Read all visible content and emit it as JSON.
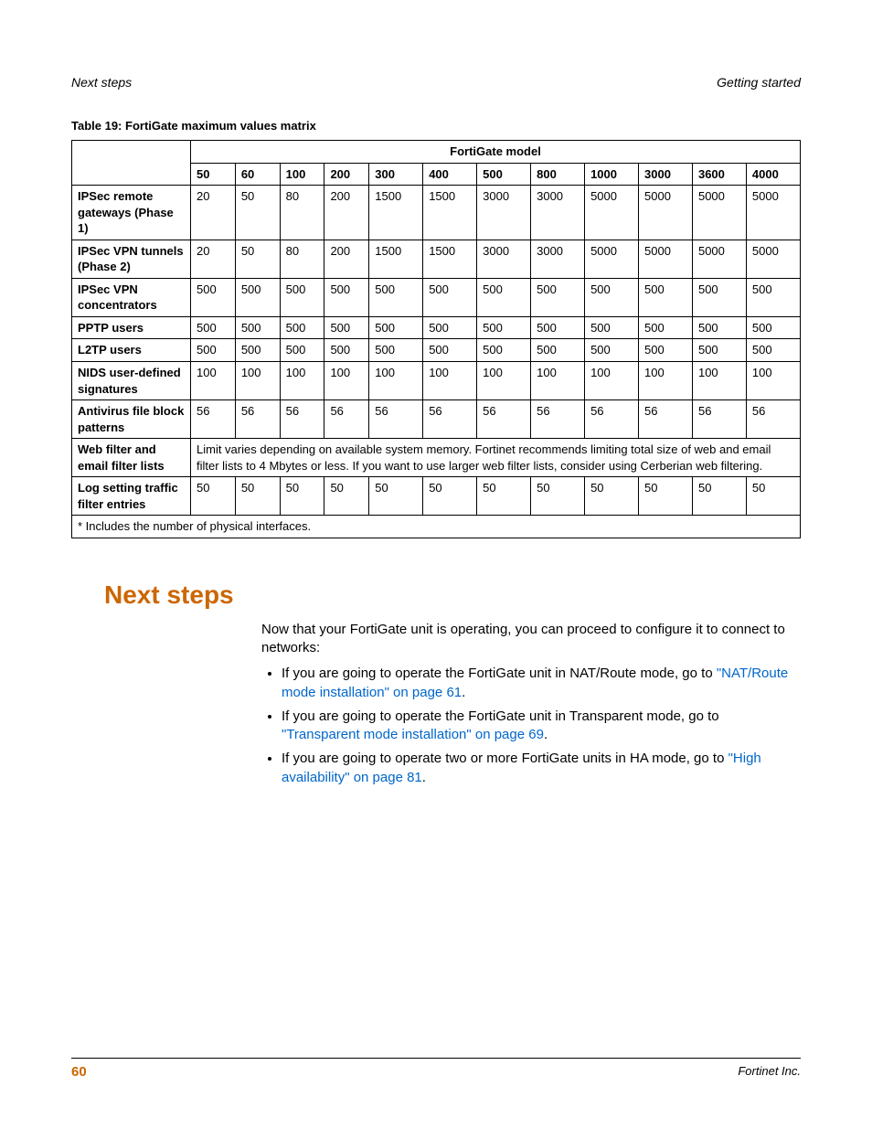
{
  "header": {
    "left": "Next steps",
    "right": "Getting started"
  },
  "table": {
    "title": "Table 19: FortiGate maximum values matrix",
    "colgroup_header": "FortiGate model",
    "models": [
      "50",
      "60",
      "100",
      "200",
      "300",
      "400",
      "500",
      "800",
      "1000",
      "3000",
      "3600",
      "4000"
    ],
    "rows": [
      {
        "label": "IPSec remote gateways (Phase 1)",
        "values": [
          "20",
          "50",
          "80",
          "200",
          "1500",
          "1500",
          "3000",
          "3000",
          "5000",
          "5000",
          "5000",
          "5000"
        ]
      },
      {
        "label": "IPSec VPN tunnels (Phase 2)",
        "values": [
          "20",
          "50",
          "80",
          "200",
          "1500",
          "1500",
          "3000",
          "3000",
          "5000",
          "5000",
          "5000",
          "5000"
        ]
      },
      {
        "label": "IPSec VPN concentrators",
        "values": [
          "500",
          "500",
          "500",
          "500",
          "500",
          "500",
          "500",
          "500",
          "500",
          "500",
          "500",
          "500"
        ]
      },
      {
        "label": "PPTP users",
        "values": [
          "500",
          "500",
          "500",
          "500",
          "500",
          "500",
          "500",
          "500",
          "500",
          "500",
          "500",
          "500"
        ]
      },
      {
        "label": "L2TP users",
        "values": [
          "500",
          "500",
          "500",
          "500",
          "500",
          "500",
          "500",
          "500",
          "500",
          "500",
          "500",
          "500"
        ]
      },
      {
        "label": "NIDS user-defined signatures",
        "values": [
          "100",
          "100",
          "100",
          "100",
          "100",
          "100",
          "100",
          "100",
          "100",
          "100",
          "100",
          "100"
        ]
      },
      {
        "label": "Antivirus file block patterns",
        "values": [
          "56",
          "56",
          "56",
          "56",
          "56",
          "56",
          "56",
          "56",
          "56",
          "56",
          "56",
          "56"
        ]
      }
    ],
    "web_filter_row": {
      "label": "Web filter and email filter lists",
      "text": "Limit varies depending on available system memory. Fortinet recommends limiting total size of web and email filter lists to 4 Mbytes or less. If you want to use larger web filter lists, consider using Cerberian web filtering."
    },
    "log_row": {
      "label": "Log setting traffic filter entries",
      "values": [
        "50",
        "50",
        "50",
        "50",
        "50",
        "50",
        "50",
        "50",
        "50",
        "50",
        "50",
        "50"
      ]
    },
    "footnote": "* Includes the number of physical interfaces."
  },
  "section": {
    "title": "Next steps",
    "intro": "Now that your FortiGate unit is operating, you can proceed to configure it to connect to networks:",
    "items": [
      {
        "pre": "If you are going to operate the FortiGate unit in NAT/Route mode, go to ",
        "link": "\"NAT/Route mode installation\" on page 61",
        "post": "."
      },
      {
        "pre": "If you are going to operate the FortiGate unit in Transparent mode, go to ",
        "link": "\"Transparent mode installation\" on page 69",
        "post": "."
      },
      {
        "pre": "If you are going to operate two or more FortiGate units in HA mode, go to ",
        "link": "\"High availability\" on page 81",
        "post": "."
      }
    ]
  },
  "footer": {
    "page": "60",
    "right": "Fortinet Inc."
  }
}
